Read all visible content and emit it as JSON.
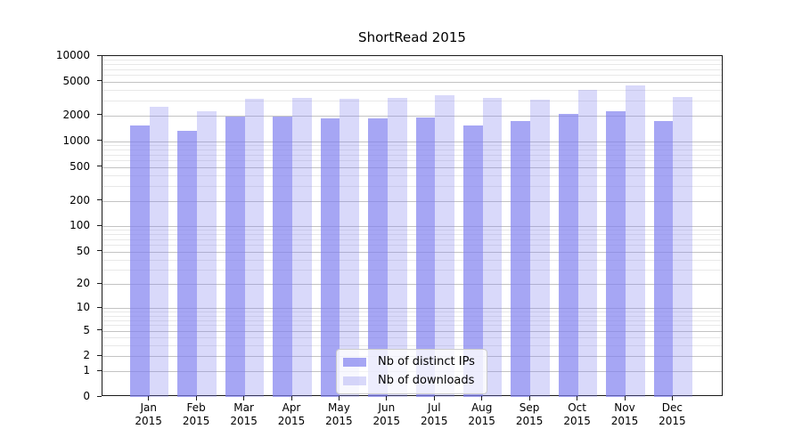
{
  "figure": {
    "title": "ShortRead 2015"
  },
  "chart_data": {
    "type": "bar",
    "title": "ShortRead 2015",
    "categories": [
      "Jan",
      "Feb",
      "Mar",
      "Apr",
      "May",
      "Jun",
      "Jul",
      "Aug",
      "Sep",
      "Oct",
      "Nov",
      "Dec"
    ],
    "category_year": "2015",
    "series": [
      {
        "name": "Nb of distinct IPs",
        "color": "rgba(128,128,240,0.7)",
        "values": [
          1540,
          1330,
          1960,
          1960,
          1880,
          1860,
          1910,
          1520,
          1710,
          2120,
          2280,
          1740
        ]
      },
      {
        "name": "Nb of downloads",
        "color": "rgba(128,128,240,0.3)",
        "values": [
          2540,
          2250,
          3180,
          3260,
          3180,
          3260,
          3440,
          3260,
          3110,
          4000,
          4490,
          3320
        ]
      }
    ],
    "y_scale": "log10(value+1)",
    "ylim": [
      0,
      10000
    ],
    "y_ticks": [
      0,
      1,
      2,
      5,
      10,
      20,
      50,
      100,
      200,
      500,
      1000,
      2000,
      5000,
      10000
    ],
    "y_minor_gridlines": [
      3,
      4,
      6,
      7,
      8,
      9,
      30,
      40,
      60,
      70,
      80,
      90,
      300,
      400,
      600,
      700,
      800,
      900,
      3000,
      4000,
      6000,
      7000,
      8000,
      9000
    ],
    "grid": "horizontal major + minor",
    "legend_position": "bottom-center-inside"
  },
  "colors": {
    "background": "#ffffff",
    "axis": "#1a1a1a",
    "major_grid": "#c3c3c3",
    "minor_grid": "#e8e8e8",
    "bar_distinct_ips": "rgba(128,128,240,0.7)",
    "bar_downloads": "rgba(128,128,240,0.3)",
    "legend_border": "#cccccc",
    "legend_background": "rgba(255,255,255,0.8)"
  }
}
